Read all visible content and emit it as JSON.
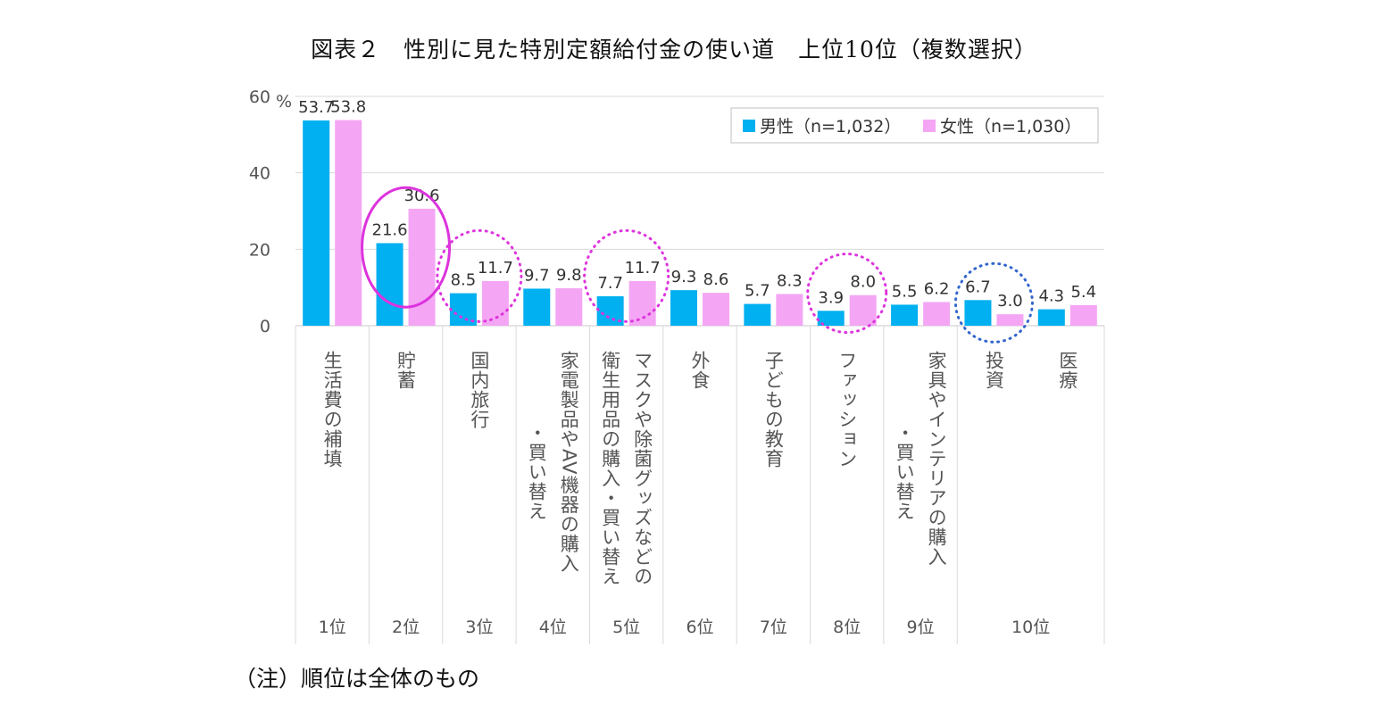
{
  "title": "図表２　性別に見た特別定額給付金の使い道　上位10位（複数選択）",
  "note": "（注）順位は全体のもの",
  "chart_data": {
    "type": "bar",
    "y_unit": "%",
    "ylim": [
      0,
      60
    ],
    "yticks": [
      0,
      20,
      40,
      60
    ],
    "grid": true,
    "legend_position": "top-right",
    "categories": [
      {
        "lines": [
          "生活費の補填"
        ],
        "rank": "1位"
      },
      {
        "lines": [
          "貯蓄"
        ],
        "rank": "2位"
      },
      {
        "lines": [
          "国内旅行"
        ],
        "rank": "3位"
      },
      {
        "lines": [
          "家電製品やAV機器の購入",
          "・買い替え"
        ],
        "rank": "4位"
      },
      {
        "lines": [
          "マスクや除菌グッズなどの",
          "衛生用品の購入・買い替え"
        ],
        "rank": "5位"
      },
      {
        "lines": [
          "外食"
        ],
        "rank": "6位"
      },
      {
        "lines": [
          "子どもの教育"
        ],
        "rank": "7位"
      },
      {
        "lines": [
          "ファッション"
        ],
        "rank": "8位"
      },
      {
        "lines": [
          "家具やインテリアの購入",
          "・買い替え"
        ],
        "rank": "9位"
      },
      {
        "lines": [
          "投資"
        ],
        "rank": ""
      },
      {
        "lines": [
          "医療"
        ],
        "rank": ""
      }
    ],
    "shared_rank_label": "10位",
    "series": [
      {
        "name": "男性（n=1,032）",
        "color": "#00b0f0",
        "values": [
          53.7,
          21.6,
          8.5,
          9.7,
          7.7,
          9.3,
          5.7,
          3.9,
          5.5,
          6.7,
          4.3
        ]
      },
      {
        "name": "女性（n=1,030）",
        "color": "#f4a6f4",
        "values": [
          53.8,
          30.6,
          11.7,
          9.8,
          11.7,
          8.6,
          8.3,
          8.0,
          6.2,
          3.0,
          5.4
        ]
      }
    ],
    "annotations": [
      {
        "category_index": 1,
        "style": "solid",
        "color": "#dd33dd"
      },
      {
        "category_index": 2,
        "style": "dotted",
        "color": "#dd33dd"
      },
      {
        "category_index": 4,
        "style": "dotted",
        "color": "#dd33dd"
      },
      {
        "category_index": 7,
        "style": "dotted",
        "color": "#dd33dd"
      },
      {
        "category_index": 9,
        "style": "dotted",
        "color": "#3366cc"
      }
    ]
  }
}
